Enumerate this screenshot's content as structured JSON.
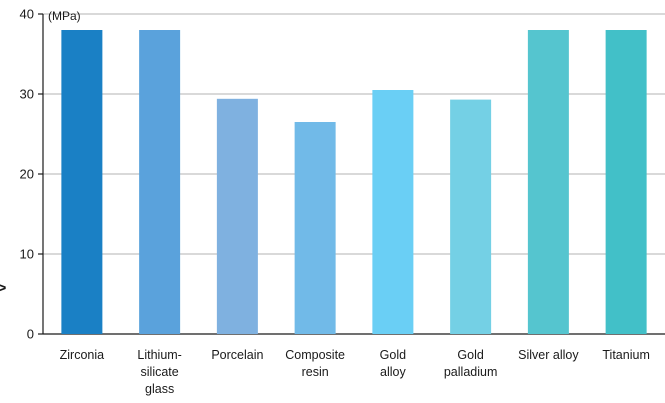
{
  "chart_data": {
    "type": "bar",
    "title": "",
    "unit_label": "(MPa)",
    "xlabel": "",
    "ylabel": "",
    "ylim": [
      0,
      40
    ],
    "yticks": [
      0,
      10,
      20,
      30,
      40
    ],
    "grid": true,
    "categories": [
      [
        "Zirconia"
      ],
      [
        "Lithium-",
        "silicate",
        "glass"
      ],
      [
        "Porcelain"
      ],
      [
        "Composite",
        "resin"
      ],
      [
        "Gold",
        "alloy"
      ],
      [
        "Gold",
        "palladium"
      ],
      [
        "Silver alloy"
      ],
      [
        "Titanium"
      ]
    ],
    "values": [
      38,
      38,
      29.4,
      26.5,
      30.5,
      29.3,
      38,
      38
    ],
    "colors": [
      "#1a80c5",
      "#5aa2dc",
      "#7fb1e0",
      "#71bae8",
      "#6acff5",
      "#74d0e5",
      "#55c5cf",
      "#42c0c8"
    ],
    "axis_color": "#1a1a1a",
    "grid_color": "#b3b3b3",
    "marker_color": "#1b7fc4",
    "edge_marker": ">"
  }
}
